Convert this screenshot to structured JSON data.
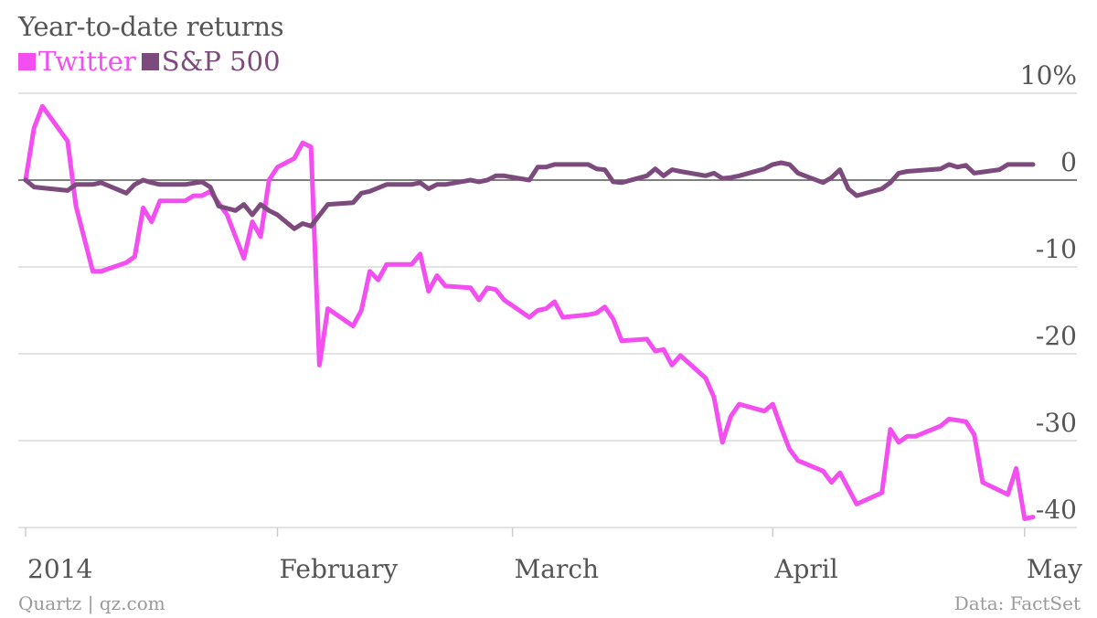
{
  "header": {
    "title": "Year-to-date returns"
  },
  "footer": {
    "credit": "Quartz | qz.com",
    "source": "Data: FactSet"
  },
  "colors": {
    "twitter": "#f24ef0",
    "sp500": "#7d4a7d",
    "grid": "#e3e3e3",
    "zero": "#555555",
    "text": "#555555"
  },
  "chart_data": {
    "type": "line",
    "title": "Year-to-date returns",
    "xlabel": "",
    "ylabel": "",
    "ylim": [
      -40,
      10
    ],
    "x_range": [
      "2014-01-02",
      "2014-05-02"
    ],
    "yticks": [
      10,
      0,
      -10,
      -20,
      -30,
      -40
    ],
    "ytick_labels": [
      "10%",
      "0",
      "-10",
      "-20",
      "-30",
      "-40"
    ],
    "xticks": [
      "2014-01-02",
      "2014-02-01",
      "2014-03-01",
      "2014-04-01",
      "2014-05-01"
    ],
    "xtick_labels": [
      "2014",
      "February",
      "March",
      "April",
      "May"
    ],
    "legend_position": "top-left",
    "grid": true,
    "series": [
      {
        "name": "Twitter",
        "points": [
          [
            "2014-01-02",
            0.0
          ],
          [
            "2014-01-03",
            6.0
          ],
          [
            "2014-01-04",
            8.5
          ],
          [
            "2014-01-07",
            4.5
          ],
          [
            "2014-01-08",
            -3.0
          ],
          [
            "2014-01-10",
            -10.5
          ],
          [
            "2014-01-11",
            -10.5
          ],
          [
            "2014-01-14",
            -9.5
          ],
          [
            "2014-01-15",
            -8.8
          ],
          [
            "2014-01-16",
            -3.2
          ],
          [
            "2014-01-17",
            -4.8
          ],
          [
            "2014-01-18",
            -2.4
          ],
          [
            "2014-01-21",
            -2.4
          ],
          [
            "2014-01-22",
            -1.8
          ],
          [
            "2014-01-23",
            -1.8
          ],
          [
            "2014-01-24",
            -1.3
          ],
          [
            "2014-01-26",
            -4.0
          ],
          [
            "2014-01-28",
            -9.0
          ],
          [
            "2014-01-29",
            -4.8
          ],
          [
            "2014-01-30",
            -6.5
          ],
          [
            "2014-01-31",
            0.0
          ],
          [
            "2014-02-01",
            1.5
          ],
          [
            "2014-02-03",
            2.5
          ],
          [
            "2014-02-04",
            4.3
          ],
          [
            "2014-02-05",
            3.8
          ],
          [
            "2014-02-06",
            -21.3
          ],
          [
            "2014-02-07",
            -14.8
          ],
          [
            "2014-02-10",
            -16.8
          ],
          [
            "2014-02-11",
            -15.0
          ],
          [
            "2014-02-12",
            -10.5
          ],
          [
            "2014-02-13",
            -11.5
          ],
          [
            "2014-02-14",
            -9.7
          ],
          [
            "2014-02-17",
            -9.7
          ],
          [
            "2014-02-18",
            -8.5
          ],
          [
            "2014-02-19",
            -12.8
          ],
          [
            "2014-02-20",
            -11.0
          ],
          [
            "2014-02-21",
            -12.2
          ],
          [
            "2014-02-24",
            -12.4
          ],
          [
            "2014-02-25",
            -13.8
          ],
          [
            "2014-02-26",
            -12.4
          ],
          [
            "2014-02-27",
            -12.6
          ],
          [
            "2014-02-28",
            -13.8
          ],
          [
            "2014-03-03",
            -15.8
          ],
          [
            "2014-03-04",
            -15.0
          ],
          [
            "2014-03-05",
            -14.8
          ],
          [
            "2014-03-06",
            -14.0
          ],
          [
            "2014-03-07",
            -15.8
          ],
          [
            "2014-03-10",
            -15.5
          ],
          [
            "2014-03-11",
            -15.3
          ],
          [
            "2014-03-12",
            -14.6
          ],
          [
            "2014-03-13",
            -16.0
          ],
          [
            "2014-03-14",
            -18.5
          ],
          [
            "2014-03-17",
            -18.3
          ],
          [
            "2014-03-18",
            -19.7
          ],
          [
            "2014-03-19",
            -19.5
          ],
          [
            "2014-03-20",
            -21.3
          ],
          [
            "2014-03-21",
            -20.2
          ],
          [
            "2014-03-24",
            -22.8
          ],
          [
            "2014-03-25",
            -25.0
          ],
          [
            "2014-03-26",
            -30.2
          ],
          [
            "2014-03-27",
            -27.2
          ],
          [
            "2014-03-28",
            -25.8
          ],
          [
            "2014-03-31",
            -26.6
          ],
          [
            "2014-04-01",
            -25.8
          ],
          [
            "2014-04-02",
            -28.5
          ],
          [
            "2014-04-03",
            -31.0
          ],
          [
            "2014-04-04",
            -32.3
          ],
          [
            "2014-04-07",
            -33.5
          ],
          [
            "2014-04-08",
            -34.8
          ],
          [
            "2014-04-09",
            -33.7
          ],
          [
            "2014-04-11",
            -37.3
          ],
          [
            "2014-04-14",
            -36.0
          ],
          [
            "2014-04-15",
            -28.7
          ],
          [
            "2014-04-16",
            -30.2
          ],
          [
            "2014-04-17",
            -29.5
          ],
          [
            "2014-04-18",
            -29.5
          ],
          [
            "2014-04-21",
            -28.3
          ],
          [
            "2014-04-22",
            -27.5
          ],
          [
            "2014-04-24",
            -27.8
          ],
          [
            "2014-04-25",
            -29.3
          ],
          [
            "2014-04-26",
            -34.8
          ],
          [
            "2014-04-29",
            -36.2
          ],
          [
            "2014-04-30",
            -33.2
          ],
          [
            "2014-05-01",
            -39.0
          ],
          [
            "2014-05-02",
            -38.8
          ]
        ]
      },
      {
        "name": "S&P 500",
        "points": [
          [
            "2014-01-02",
            0.0
          ],
          [
            "2014-01-03",
            -0.8
          ],
          [
            "2014-01-07",
            -1.2
          ],
          [
            "2014-01-08",
            -0.5
          ],
          [
            "2014-01-10",
            -0.5
          ],
          [
            "2014-01-11",
            -0.3
          ],
          [
            "2014-01-14",
            -1.5
          ],
          [
            "2014-01-15",
            -0.5
          ],
          [
            "2014-01-16",
            0.0
          ],
          [
            "2014-01-17",
            -0.3
          ],
          [
            "2014-01-18",
            -0.5
          ],
          [
            "2014-01-21",
            -0.5
          ],
          [
            "2014-01-23",
            -0.2
          ],
          [
            "2014-01-24",
            -0.8
          ],
          [
            "2014-01-25",
            -3.0
          ],
          [
            "2014-01-27",
            -3.5
          ],
          [
            "2014-01-28",
            -2.8
          ],
          [
            "2014-01-29",
            -4.0
          ],
          [
            "2014-01-30",
            -2.8
          ],
          [
            "2014-01-31",
            -3.5
          ],
          [
            "2014-02-01",
            -4.0
          ],
          [
            "2014-02-03",
            -5.6
          ],
          [
            "2014-02-04",
            -5.0
          ],
          [
            "2014-02-05",
            -5.3
          ],
          [
            "2014-02-07",
            -2.8
          ],
          [
            "2014-02-10",
            -2.6
          ],
          [
            "2014-02-11",
            -1.5
          ],
          [
            "2014-02-12",
            -1.3
          ],
          [
            "2014-02-14",
            -0.5
          ],
          [
            "2014-02-17",
            -0.5
          ],
          [
            "2014-02-18",
            -0.3
          ],
          [
            "2014-02-19",
            -1.0
          ],
          [
            "2014-02-20",
            -0.5
          ],
          [
            "2014-02-21",
            -0.5
          ],
          [
            "2014-02-24",
            0.0
          ],
          [
            "2014-02-25",
            -0.2
          ],
          [
            "2014-02-26",
            0.0
          ],
          [
            "2014-02-27",
            0.5
          ],
          [
            "2014-02-28",
            0.5
          ],
          [
            "2014-03-03",
            0.0
          ],
          [
            "2014-03-04",
            1.5
          ],
          [
            "2014-03-05",
            1.5
          ],
          [
            "2014-03-06",
            1.8
          ],
          [
            "2014-03-07",
            1.8
          ],
          [
            "2014-03-10",
            1.8
          ],
          [
            "2014-03-11",
            1.3
          ],
          [
            "2014-03-12",
            1.2
          ],
          [
            "2014-03-13",
            -0.2
          ],
          [
            "2014-03-14",
            -0.3
          ],
          [
            "2014-03-17",
            0.5
          ],
          [
            "2014-03-18",
            1.3
          ],
          [
            "2014-03-19",
            0.5
          ],
          [
            "2014-03-20",
            1.2
          ],
          [
            "2014-03-21",
            1.0
          ],
          [
            "2014-03-24",
            0.5
          ],
          [
            "2014-03-25",
            0.8
          ],
          [
            "2014-03-26",
            0.2
          ],
          [
            "2014-03-27",
            0.3
          ],
          [
            "2014-03-28",
            0.5
          ],
          [
            "2014-03-31",
            1.3
          ],
          [
            "2014-04-01",
            1.8
          ],
          [
            "2014-04-02",
            2.0
          ],
          [
            "2014-04-03",
            1.8
          ],
          [
            "2014-04-04",
            0.8
          ],
          [
            "2014-04-07",
            -0.3
          ],
          [
            "2014-04-08",
            0.3
          ],
          [
            "2014-04-09",
            1.2
          ],
          [
            "2014-04-10",
            -1.0
          ],
          [
            "2014-04-11",
            -1.8
          ],
          [
            "2014-04-14",
            -1.0
          ],
          [
            "2014-04-15",
            -0.3
          ],
          [
            "2014-04-16",
            0.8
          ],
          [
            "2014-04-17",
            1.0
          ],
          [
            "2014-04-21",
            1.3
          ],
          [
            "2014-04-22",
            1.8
          ],
          [
            "2014-04-23",
            1.5
          ],
          [
            "2014-04-24",
            1.7
          ],
          [
            "2014-04-25",
            0.8
          ],
          [
            "2014-04-28",
            1.2
          ],
          [
            "2014-04-29",
            1.8
          ],
          [
            "2014-04-30",
            1.8
          ],
          [
            "2014-05-01",
            1.8
          ],
          [
            "2014-05-02",
            1.8
          ]
        ]
      }
    ]
  }
}
